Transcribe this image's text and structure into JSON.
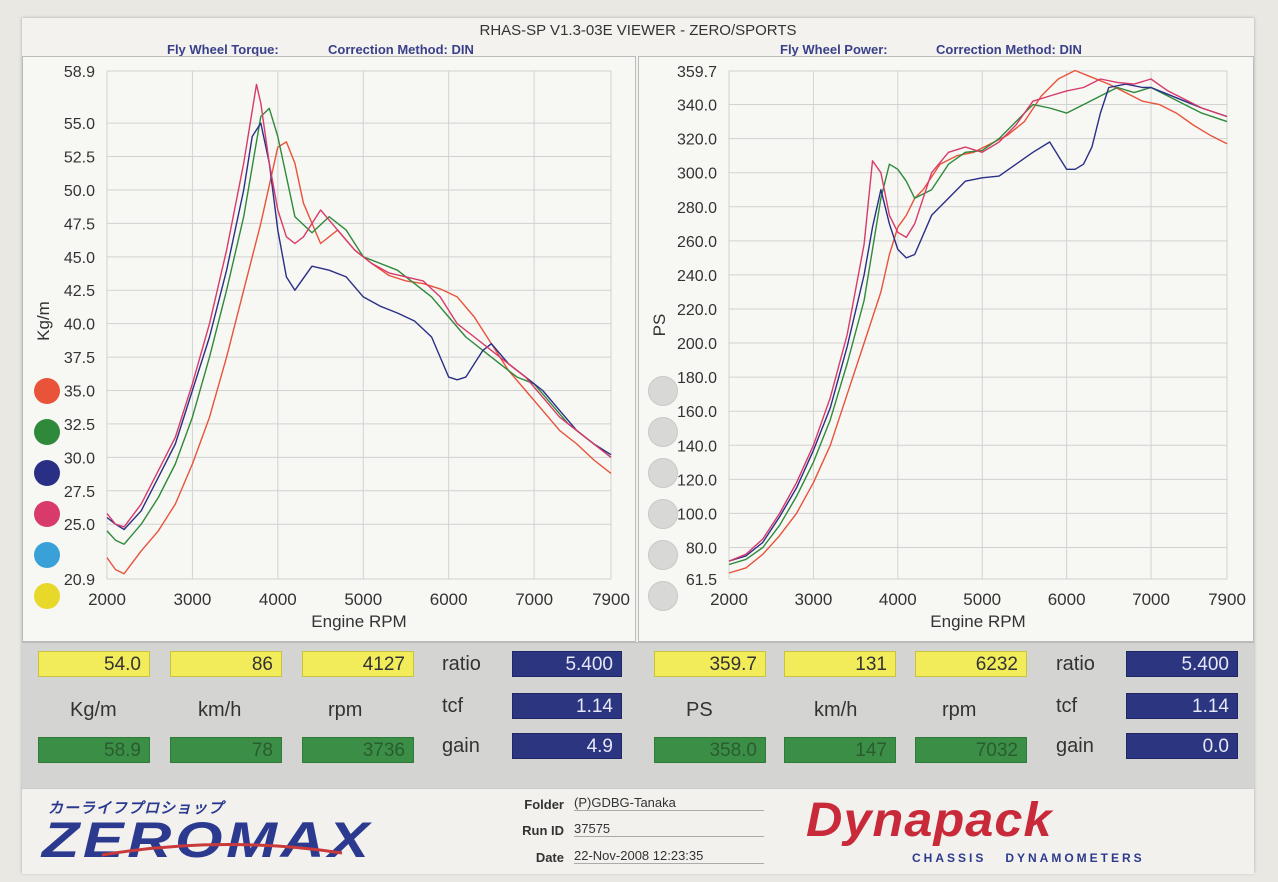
{
  "title": "RHAS-SP V1.3-03E VIEWER - ZERO/SPORTS",
  "left_header": {
    "label": "Fly Wheel Torque:",
    "method": "Correction Method: DIN"
  },
  "right_header": {
    "label": "Fly Wheel Power:",
    "method": "Correction Method: DIN"
  },
  "colors": {
    "red": "#e8533a",
    "green": "#2e8a3a",
    "blue": "#2a2f86",
    "pink": "#d83a6a",
    "cyan": "#3aa0d8",
    "yellow": "#e8d82a"
  },
  "legend_dots": [
    "red",
    "green",
    "blue",
    "pink",
    "cyan",
    "yellow"
  ],
  "chart_data": [
    {
      "type": "line",
      "xlabel": "Engine RPM",
      "ylabel": "Kg/m",
      "xlim": [
        2000,
        7900
      ],
      "ylim": [
        20.9,
        58.9
      ],
      "x_ticks": [
        "2000",
        "3000",
        "4000",
        "5000",
        "6000",
        "7000",
        "7900"
      ],
      "y_ticks": [
        "58.9",
        "55.0",
        "52.5",
        "50.0",
        "47.5",
        "45.0",
        "42.5",
        "40.0",
        "37.5",
        "35.0",
        "32.5",
        "30.0",
        "27.5",
        "25.0",
        "20.9"
      ],
      "grid": true,
      "series": [
        {
          "color": "#e8533a",
          "x": [
            2000,
            2100,
            2200,
            2400,
            2600,
            2800,
            3000,
            3200,
            3400,
            3600,
            3800,
            4000,
            4100,
            4200,
            4300,
            4500,
            4700,
            4900,
            5100,
            5300,
            5500,
            5700,
            5900,
            6100,
            6300,
            6500,
            6700,
            6900,
            7100,
            7300,
            7500,
            7700,
            7900
          ],
          "y": [
            22.5,
            21.6,
            21.3,
            23.0,
            24.5,
            26.5,
            29.5,
            33.0,
            37.5,
            42.5,
            47.5,
            53.2,
            53.6,
            52.0,
            49.0,
            46.0,
            47.0,
            45.5,
            44.5,
            43.6,
            43.2,
            43.0,
            42.6,
            42.0,
            40.5,
            38.5,
            36.5,
            35.0,
            33.5,
            32.0,
            31.0,
            29.8,
            28.8
          ]
        },
        {
          "color": "#2e8a3a",
          "x": [
            2000,
            2100,
            2200,
            2400,
            2600,
            2800,
            3000,
            3200,
            3400,
            3600,
            3800,
            3900,
            4000,
            4100,
            4200,
            4400,
            4600,
            4800,
            5000,
            5200,
            5400,
            5600,
            5800,
            6000,
            6200,
            6400,
            6600,
            6800,
            7000,
            7200,
            7400,
            7600,
            7900
          ],
          "y": [
            24.5,
            23.8,
            23.5,
            25.0,
            27.0,
            29.5,
            33.0,
            37.5,
            42.5,
            48.0,
            55.5,
            56.1,
            54.0,
            51.0,
            48.0,
            46.8,
            48.0,
            47.0,
            45.0,
            44.5,
            44.0,
            43.0,
            42.0,
            40.5,
            39.0,
            38.0,
            37.0,
            36.0,
            35.5,
            34.0,
            32.5,
            31.5,
            30.0
          ]
        },
        {
          "color": "#2a2f86",
          "x": [
            2000,
            2100,
            2200,
            2400,
            2600,
            2800,
            3000,
            3200,
            3400,
            3600,
            3700,
            3800,
            3900,
            4000,
            4100,
            4200,
            4400,
            4600,
            4800,
            5000,
            5200,
            5400,
            5600,
            5800,
            6000,
            6100,
            6200,
            6300,
            6400,
            6500,
            6700,
            6900,
            7100,
            7300,
            7500,
            7700,
            7900
          ],
          "y": [
            25.5,
            25.0,
            24.6,
            26.0,
            28.5,
            31.0,
            35.0,
            39.0,
            44.0,
            50.0,
            54.0,
            55.0,
            52.0,
            47.0,
            43.5,
            42.5,
            44.3,
            44.0,
            43.5,
            42.0,
            41.3,
            40.8,
            40.2,
            39.0,
            36.0,
            35.8,
            36.0,
            37.0,
            38.0,
            38.5,
            37.0,
            36.0,
            35.0,
            33.5,
            32.0,
            31.0,
            30.2
          ]
        },
        {
          "color": "#d83a6a",
          "x": [
            2000,
            2100,
            2200,
            2400,
            2600,
            2800,
            3000,
            3200,
            3400,
            3600,
            3750,
            3800,
            3900,
            4000,
            4100,
            4200,
            4300,
            4500,
            4700,
            4900,
            5100,
            5300,
            5500,
            5700,
            5900,
            6100,
            6300,
            6500,
            6700,
            6900,
            7100,
            7300,
            7500,
            7700,
            7900
          ],
          "y": [
            25.8,
            25.0,
            24.8,
            26.5,
            29.0,
            31.5,
            35.5,
            40.0,
            45.5,
            52.0,
            57.9,
            56.5,
            52.0,
            48.5,
            46.5,
            46.0,
            46.5,
            48.5,
            47.0,
            45.5,
            44.5,
            43.8,
            43.5,
            43.2,
            42.0,
            40.0,
            39.0,
            38.0,
            37.0,
            36.0,
            34.5,
            33.0,
            32.0,
            31.0,
            30.0
          ]
        }
      ]
    },
    {
      "type": "line",
      "xlabel": "Engine RPM",
      "ylabel": "PS",
      "xlim": [
        2000,
        7900
      ],
      "ylim": [
        61.5,
        359.7
      ],
      "x_ticks": [
        "2000",
        "3000",
        "4000",
        "5000",
        "6000",
        "7000",
        "7900"
      ],
      "y_ticks": [
        "359.7",
        "340.0",
        "320.0",
        "300.0",
        "280.0",
        "260.0",
        "240.0",
        "220.0",
        "200.0",
        "180.0",
        "160.0",
        "140.0",
        "120.0",
        "100.0",
        "80.0",
        "61.5"
      ],
      "grid": true,
      "series": [
        {
          "color": "#e8533a",
          "x": [
            2000,
            2200,
            2400,
            2600,
            2800,
            3000,
            3200,
            3400,
            3600,
            3800,
            3900,
            4000,
            4100,
            4200,
            4300,
            4500,
            4700,
            4900,
            5100,
            5300,
            5500,
            5700,
            5900,
            6100,
            6300,
            6500,
            6700,
            6900,
            7100,
            7300,
            7500,
            7700,
            7900
          ],
          "y": [
            65,
            68,
            76,
            87,
            100,
            118,
            140,
            170,
            200,
            230,
            252,
            268,
            275,
            285,
            290,
            305,
            310,
            312,
            317,
            322,
            330,
            345,
            355,
            360,
            356,
            352,
            347,
            342,
            340,
            335,
            328,
            322,
            317
          ]
        },
        {
          "color": "#2e8a3a",
          "x": [
            2000,
            2200,
            2400,
            2600,
            2800,
            3000,
            3200,
            3400,
            3600,
            3800,
            3900,
            4000,
            4100,
            4200,
            4400,
            4600,
            4800,
            5000,
            5200,
            5400,
            5600,
            5800,
            6000,
            6200,
            6400,
            6600,
            6800,
            7000,
            7200,
            7400,
            7600,
            7900
          ],
          "y": [
            70,
            73,
            80,
            93,
            110,
            130,
            155,
            188,
            225,
            285,
            305,
            302,
            295,
            285,
            290,
            305,
            312,
            313,
            320,
            330,
            340,
            338,
            335,
            340,
            345,
            350,
            347,
            350,
            345,
            340,
            335,
            330
          ]
        },
        {
          "color": "#2a2f86",
          "x": [
            2000,
            2200,
            2400,
            2600,
            2800,
            3000,
            3200,
            3400,
            3600,
            3700,
            3800,
            3900,
            4000,
            4100,
            4200,
            4400,
            4600,
            4800,
            5000,
            5200,
            5400,
            5600,
            5800,
            5900,
            6000,
            6100,
            6200,
            6300,
            6400,
            6500,
            6700,
            6900,
            7000,
            7200,
            7400,
            7600,
            7900
          ],
          "y": [
            72,
            75,
            83,
            98,
            115,
            137,
            162,
            198,
            240,
            268,
            290,
            270,
            255,
            250,
            252,
            275,
            285,
            295,
            297,
            298,
            305,
            312,
            318,
            310,
            302,
            302,
            305,
            315,
            335,
            350,
            352,
            350,
            350,
            346,
            342,
            338,
            333
          ]
        },
        {
          "color": "#d83a6a",
          "x": [
            2000,
            2200,
            2400,
            2600,
            2800,
            3000,
            3200,
            3400,
            3600,
            3700,
            3800,
            3900,
            4000,
            4100,
            4200,
            4400,
            4600,
            4800,
            5000,
            5200,
            5400,
            5600,
            5800,
            6000,
            6200,
            6400,
            6600,
            6800,
            7000,
            7200,
            7400,
            7600,
            7900
          ],
          "y": [
            72,
            76,
            85,
            100,
            118,
            140,
            168,
            205,
            258,
            307,
            300,
            275,
            265,
            262,
            270,
            300,
            312,
            315,
            312,
            318,
            328,
            342,
            345,
            348,
            350,
            355,
            353,
            352,
            355,
            348,
            343,
            338,
            333
          ]
        }
      ]
    }
  ],
  "left_readout": {
    "yellow": [
      "54.0",
      "86",
      "4127"
    ],
    "units": [
      "Kg/m",
      "km/h",
      "rpm"
    ],
    "green": [
      "58.9",
      "78",
      "3736"
    ],
    "labels": [
      "ratio",
      "tcf",
      "gain"
    ],
    "blue": [
      "5.400",
      "1.14",
      "4.9"
    ]
  },
  "right_readout": {
    "yellow": [
      "359.7",
      "131",
      "6232"
    ],
    "units": [
      "PS",
      "km/h",
      "rpm"
    ],
    "green": [
      "358.0",
      "147",
      "7032"
    ],
    "labels": [
      "ratio",
      "tcf",
      "gain"
    ],
    "blue": [
      "5.400",
      "1.14",
      "0.0"
    ]
  },
  "footer": {
    "logo_kana": "カーライフプロショップ",
    "logo_main": "ZEROMAX",
    "folder_label": "Folder",
    "folder": "(P)GDBG-Tanaka",
    "run_label": "Run ID",
    "run_id": "37575",
    "date_label": "Date",
    "date": "22-Nov-2008  12:23:35",
    "brand": "Dynapack",
    "brand_sub": "CHASSIS   DYNAMOMETERS"
  }
}
